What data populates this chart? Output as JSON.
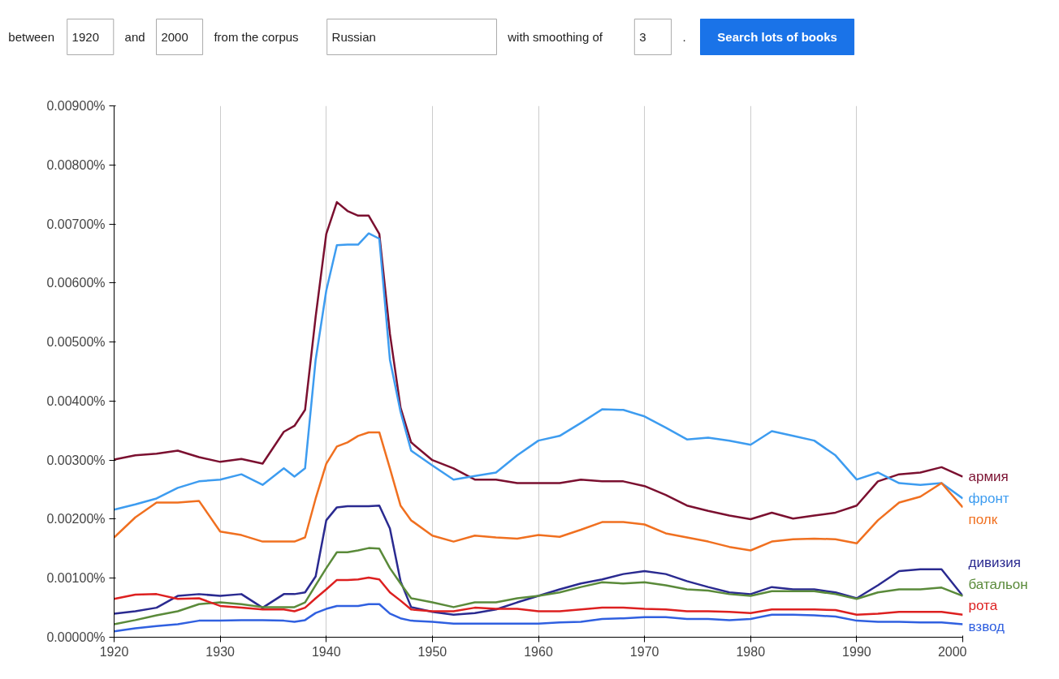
{
  "chart_data": {
    "type": "line",
    "annotations": [
      "between",
      "1920",
      "and",
      "2000",
      "from the corpus",
      "Russian",
      "with smoothing of",
      "3",
      ".",
      "Search lots of books"
    ],
    "x": [
      1920,
      1922,
      1924,
      1926,
      1928,
      1930,
      1932,
      1934,
      1936,
      1937,
      1938,
      1939,
      1940,
      1941,
      1942,
      1943,
      1944,
      1945,
      1946,
      1947,
      1948,
      1950,
      1952,
      1954,
      1956,
      1958,
      1960,
      1962,
      1964,
      1966,
      1968,
      1970,
      1972,
      1974,
      1976,
      1978,
      1980,
      1982,
      1984,
      1986,
      1988,
      1990,
      1992,
      1994,
      1996,
      1998,
      2000
    ],
    "series": [
      {
        "name": "армия",
        "color": "#7b1030",
        "values": [
          0.00301,
          0.00308,
          0.00311,
          0.00316,
          0.00305,
          0.00297,
          0.00302,
          0.00294,
          0.00348,
          0.00358,
          0.00385,
          0.00543,
          0.00683,
          0.00737,
          0.00722,
          0.00714,
          0.00714,
          0.00683,
          0.00514,
          0.00389,
          0.0033,
          0.003,
          0.00286,
          0.00267,
          0.00267,
          0.00261,
          0.00261,
          0.00261,
          0.00267,
          0.00264,
          0.00264,
          0.00256,
          0.00241,
          0.00223,
          0.00214,
          0.00206,
          0.002,
          0.00211,
          0.00201,
          0.00206,
          0.00211,
          0.00223,
          0.00264,
          0.00276,
          0.00279,
          0.00288,
          0.00272
        ]
      },
      {
        "name": "фронт",
        "color": "#3d9cf0",
        "values": [
          0.00216,
          0.00225,
          0.00235,
          0.00253,
          0.00264,
          0.00267,
          0.00276,
          0.00258,
          0.00286,
          0.00272,
          0.00286,
          0.0047,
          0.00587,
          0.00664,
          0.00665,
          0.00665,
          0.00684,
          0.00675,
          0.0047,
          0.00382,
          0.00316,
          0.00291,
          0.00267,
          0.00273,
          0.00279,
          0.00308,
          0.00333,
          0.00341,
          0.00363,
          0.00386,
          0.00385,
          0.00374,
          0.00355,
          0.00335,
          0.00338,
          0.00333,
          0.00326,
          0.00349,
          0.00341,
          0.00333,
          0.00308,
          0.00267,
          0.00279,
          0.00261,
          0.00258,
          0.00261,
          0.00235
        ]
      },
      {
        "name": "полк",
        "color": "#f07020",
        "values": [
          0.00169,
          0.00203,
          0.00228,
          0.00228,
          0.00231,
          0.00179,
          0.00173,
          0.00162,
          0.00162,
          0.00162,
          0.00169,
          0.00235,
          0.00294,
          0.00323,
          0.0033,
          0.00341,
          0.00347,
          0.00347,
          0.00286,
          0.00223,
          0.00198,
          0.00172,
          0.00162,
          0.00172,
          0.00169,
          0.00167,
          0.00173,
          0.0017,
          0.00182,
          0.00195,
          0.00195,
          0.00191,
          0.00176,
          0.00169,
          0.00162,
          0.00153,
          0.00147,
          0.00162,
          0.00166,
          0.00167,
          0.00166,
          0.00159,
          0.00198,
          0.00228,
          0.00238,
          0.00261,
          0.0022
        ]
      },
      {
        "name": "дивизия",
        "color": "#2a2a90",
        "values": [
          0.0004,
          0.00044,
          0.0005,
          0.0007,
          0.00073,
          0.0007,
          0.00073,
          0.0005,
          0.00073,
          0.00073,
          0.00076,
          0.00103,
          0.00198,
          0.0022,
          0.00222,
          0.00222,
          0.00222,
          0.00223,
          0.00184,
          0.00095,
          0.00051,
          0.00043,
          0.00038,
          0.00041,
          0.00047,
          0.00059,
          0.0007,
          0.00081,
          0.00091,
          0.00098,
          0.00107,
          0.00112,
          0.00107,
          0.00095,
          0.00085,
          0.00076,
          0.00073,
          0.00085,
          0.00081,
          0.00081,
          0.00076,
          0.00066,
          0.00088,
          0.00112,
          0.00115,
          0.00115,
          0.0007
        ]
      },
      {
        "name": "батальон",
        "color": "#5a8a3a",
        "values": [
          0.00022,
          0.00029,
          0.00037,
          0.00044,
          0.00056,
          0.00059,
          0.00056,
          0.00051,
          0.00051,
          0.00051,
          0.00059,
          0.00088,
          0.00117,
          0.00144,
          0.00144,
          0.00147,
          0.00151,
          0.0015,
          0.00117,
          0.00091,
          0.00066,
          0.00059,
          0.00051,
          0.00059,
          0.00059,
          0.00066,
          0.0007,
          0.00076,
          0.00085,
          0.00093,
          0.00091,
          0.00093,
          0.00088,
          0.00081,
          0.00079,
          0.00073,
          0.0007,
          0.00078,
          0.00078,
          0.00078,
          0.00073,
          0.00065,
          0.00076,
          0.00081,
          0.00081,
          0.00084,
          0.0007
        ]
      },
      {
        "name": "рота",
        "color": "#dd2020",
        "values": [
          0.00065,
          0.00072,
          0.00073,
          0.00065,
          0.00066,
          0.00053,
          0.0005,
          0.00047,
          0.00047,
          0.00044,
          0.0005,
          0.00066,
          0.00081,
          0.00097,
          0.00097,
          0.00098,
          0.00101,
          0.00098,
          0.00076,
          0.00062,
          0.00047,
          0.00044,
          0.00044,
          0.0005,
          0.00048,
          0.00048,
          0.00044,
          0.00044,
          0.00047,
          0.0005,
          0.0005,
          0.00048,
          0.00047,
          0.00044,
          0.00044,
          0.00043,
          0.00041,
          0.00047,
          0.00047,
          0.00047,
          0.00046,
          0.00038,
          0.0004,
          0.00043,
          0.00043,
          0.00043,
          0.00038
        ]
      },
      {
        "name": "взвод",
        "color": "#3060e0",
        "values": [
          0.0001,
          0.00015,
          0.00019,
          0.00022,
          0.00028,
          0.00028,
          0.00029,
          0.00029,
          0.00028,
          0.00026,
          0.00029,
          0.00041,
          0.00048,
          0.00053,
          0.00053,
          0.00053,
          0.00056,
          0.00056,
          0.0004,
          0.00032,
          0.00028,
          0.00026,
          0.00023,
          0.00023,
          0.00023,
          0.00023,
          0.00023,
          0.00025,
          0.00026,
          0.00031,
          0.00032,
          0.00034,
          0.00034,
          0.00031,
          0.00031,
          0.00029,
          0.00031,
          0.00038,
          0.00038,
          0.00037,
          0.00035,
          0.00028,
          0.00026,
          0.00026,
          0.00025,
          0.00025,
          0.00022
        ]
      }
    ],
    "xlim": [
      1920,
      2000
    ],
    "xticks": [
      1920,
      1930,
      1940,
      1950,
      1960,
      1970,
      1980,
      1990,
      2000
    ],
    "ylim": [
      0,
      0.009
    ],
    "yticks": [
      {
        "value": 0,
        "label": "0.00000%"
      },
      {
        "value": 0.001,
        "label": "0.00100%"
      },
      {
        "value": 0.002,
        "label": "0.00200%"
      },
      {
        "value": 0.003,
        "label": "0.00300%"
      },
      {
        "value": 0.004,
        "label": "0.00400%"
      },
      {
        "value": 0.005,
        "label": "0.00500%"
      },
      {
        "value": 0.006,
        "label": "0.00600%"
      },
      {
        "value": 0.007,
        "label": "0.00700%"
      },
      {
        "value": 0.008,
        "label": "0.00800%"
      },
      {
        "value": 0.009,
        "label": "0.00900%"
      }
    ],
    "grid": "x",
    "line_style": "solid"
  }
}
